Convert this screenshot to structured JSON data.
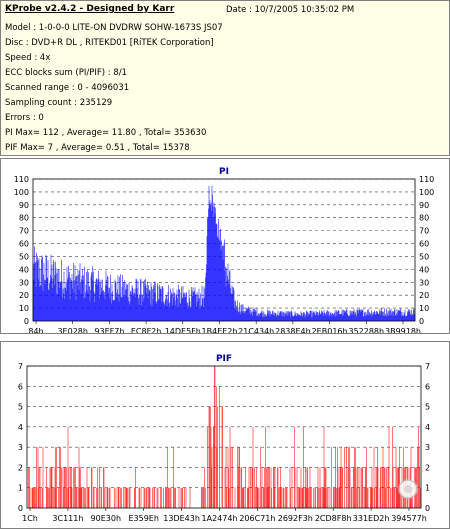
{
  "header": {
    "title": "KProbe v2.4.2 - Designed by Karr",
    "date": "Date : 10/7/2005 10:35:02 PM",
    "lines": [
      "Model : 1-0-0-0 LITE-ON DVDRW SOHW-1673S JS07",
      "Disc : DVD+R DL , RITEKD01 [RiTEK Corporation]",
      "Speed : 4x",
      "ECC blocks sum (PI/PIF) : 8/1",
      "Scanned range : 0 - 4096031",
      "Sampling count : 235129",
      "Errors : 0",
      "PI Max= 112 , Average= 11.80 , Total= 353630",
      "PIF Max= 7 , Average= 0.51 , Total= 15378"
    ]
  },
  "colors": {
    "pi": "#0000ff",
    "pif": "#ff0000",
    "info_bg": "#ffffe8",
    "pif_marker": "#ffffff"
  },
  "chart_data": [
    {
      "type": "bar",
      "title": "PI",
      "ylim": [
        0,
        110
      ],
      "yticks": [
        0,
        10,
        20,
        30,
        40,
        50,
        60,
        70,
        80,
        90,
        100,
        110
      ],
      "xtick_labels": [
        "84h",
        "3E028h",
        "93EF7h",
        "EC8F2h",
        "14DE5Fh",
        "1B4EE2h",
        "21C434h",
        "2838E4h",
        "2EB016h",
        "352288h",
        "3B9918h"
      ],
      "grid": true,
      "profile": [
        [
          0.0,
          45
        ],
        [
          0.05,
          40
        ],
        [
          0.1,
          36
        ],
        [
          0.15,
          33
        ],
        [
          0.2,
          30
        ],
        [
          0.25,
          27
        ],
        [
          0.3,
          25
        ],
        [
          0.35,
          23
        ],
        [
          0.4,
          21
        ],
        [
          0.43,
          20
        ],
        [
          0.45,
          22
        ],
        [
          0.455,
          60
        ],
        [
          0.46,
          112
        ],
        [
          0.47,
          100
        ],
        [
          0.48,
          85
        ],
        [
          0.49,
          70
        ],
        [
          0.5,
          55
        ],
        [
          0.51,
          40
        ],
        [
          0.52,
          25
        ],
        [
          0.53,
          15
        ],
        [
          0.55,
          10
        ],
        [
          0.6,
          7
        ],
        [
          0.7,
          6
        ],
        [
          0.8,
          7
        ],
        [
          0.9,
          8
        ],
        [
          1.0,
          8
        ]
      ]
    },
    {
      "type": "bar",
      "title": "PIF",
      "ylim": [
        0,
        7
      ],
      "yticks": [
        0,
        1,
        2,
        3,
        4,
        5,
        6,
        7
      ],
      "xtick_labels": [
        "1Ch",
        "3C111h",
        "90E30h",
        "E359Eh",
        "13DE43h",
        "1A2474h",
        "206C71h",
        "2692F3h",
        "2CD8F8h",
        "331ED2h",
        "394577h"
      ],
      "grid": true,
      "profile": [
        [
          0.0,
          2
        ],
        [
          0.1,
          2
        ],
        [
          0.15,
          1.5
        ],
        [
          0.2,
          1.2
        ],
        [
          0.3,
          0.8
        ],
        [
          0.4,
          0.6
        ],
        [
          0.44,
          0.5
        ],
        [
          0.46,
          4
        ],
        [
          0.47,
          7
        ],
        [
          0.48,
          5
        ],
        [
          0.5,
          3
        ],
        [
          0.55,
          2
        ],
        [
          0.6,
          1.5
        ],
        [
          0.7,
          1.5
        ],
        [
          0.8,
          2
        ],
        [
          0.9,
          2
        ],
        [
          1.0,
          2
        ]
      ]
    }
  ]
}
